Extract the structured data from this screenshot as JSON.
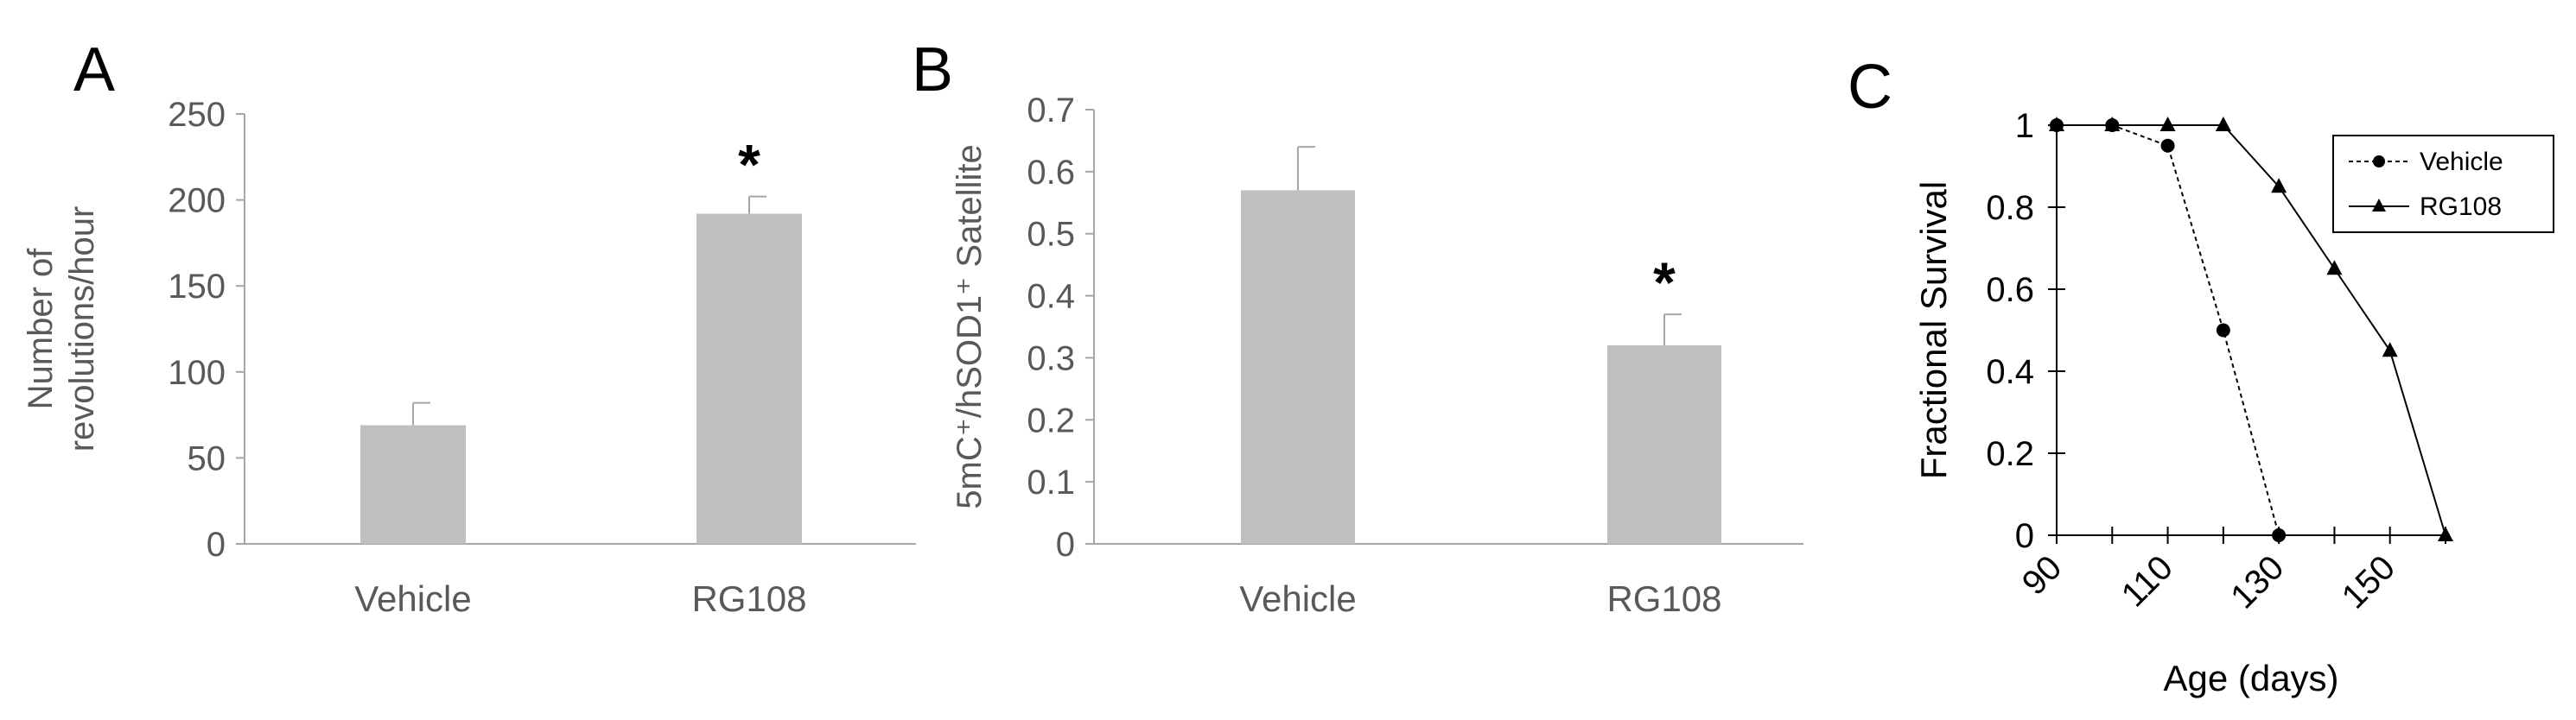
{
  "chart_data": [
    {
      "panel": "A",
      "type": "bar",
      "categories": [
        "Vehicle",
        "RG108"
      ],
      "values": [
        69,
        192
      ],
      "errors": [
        13,
        10
      ],
      "significance": [
        "",
        "*"
      ],
      "ylabel_lines": [
        "Number of",
        "revolutions/hour"
      ],
      "ylim": [
        0,
        250
      ],
      "yticks": [
        0,
        50,
        100,
        150,
        200,
        250
      ],
      "ytick_labels": [
        "0",
        "50",
        "100",
        "150",
        "200",
        "250"
      ],
      "bar_color": "#bfbfbf"
    },
    {
      "panel": "B",
      "type": "bar",
      "categories": [
        "Vehicle",
        "RG108"
      ],
      "values": [
        0.57,
        0.32
      ],
      "errors": [
        0.07,
        0.05
      ],
      "significance": [
        "",
        "*"
      ],
      "ylabel": "5mC⁺/hSOD1⁺ Satellite",
      "ylim": [
        0,
        0.7
      ],
      "yticks": [
        0,
        0.1,
        0.2,
        0.3,
        0.4,
        0.5,
        0.6,
        0.7
      ],
      "ytick_labels": [
        "0",
        "0.1",
        "0.2",
        "0.3",
        "0.4",
        "0.5",
        "0.6",
        "0.7"
      ],
      "bar_color": "#bfbfbf"
    },
    {
      "panel": "C",
      "type": "line",
      "xlabel": "Age (days)",
      "ylabel": "Fractional Survival",
      "xlim": [
        90,
        160
      ],
      "ylim": [
        0,
        1
      ],
      "xticks": [
        90,
        110,
        130,
        150
      ],
      "xtick_labels": [
        "90",
        "110",
        "130",
        "150"
      ],
      "yticks": [
        0,
        0.2,
        0.4,
        0.6,
        0.8,
        1
      ],
      "ytick_labels": [
        "0",
        "0.2",
        "0.4",
        "0.6",
        "0.8",
        "1"
      ],
      "legend_position": "top-right",
      "series": [
        {
          "name": "Vehicle",
          "marker": "circle",
          "line": "dashed",
          "x": [
            90,
            100,
            110,
            120,
            130
          ],
          "y": [
            1,
            1,
            0.95,
            0.5,
            0
          ]
        },
        {
          "name": "RG108",
          "marker": "triangle",
          "line": "solid",
          "x": [
            90,
            100,
            110,
            120,
            130,
            140,
            150,
            160
          ],
          "y": [
            1,
            1,
            1,
            1,
            0.85,
            0.65,
            0.45,
            0
          ]
        }
      ]
    }
  ]
}
